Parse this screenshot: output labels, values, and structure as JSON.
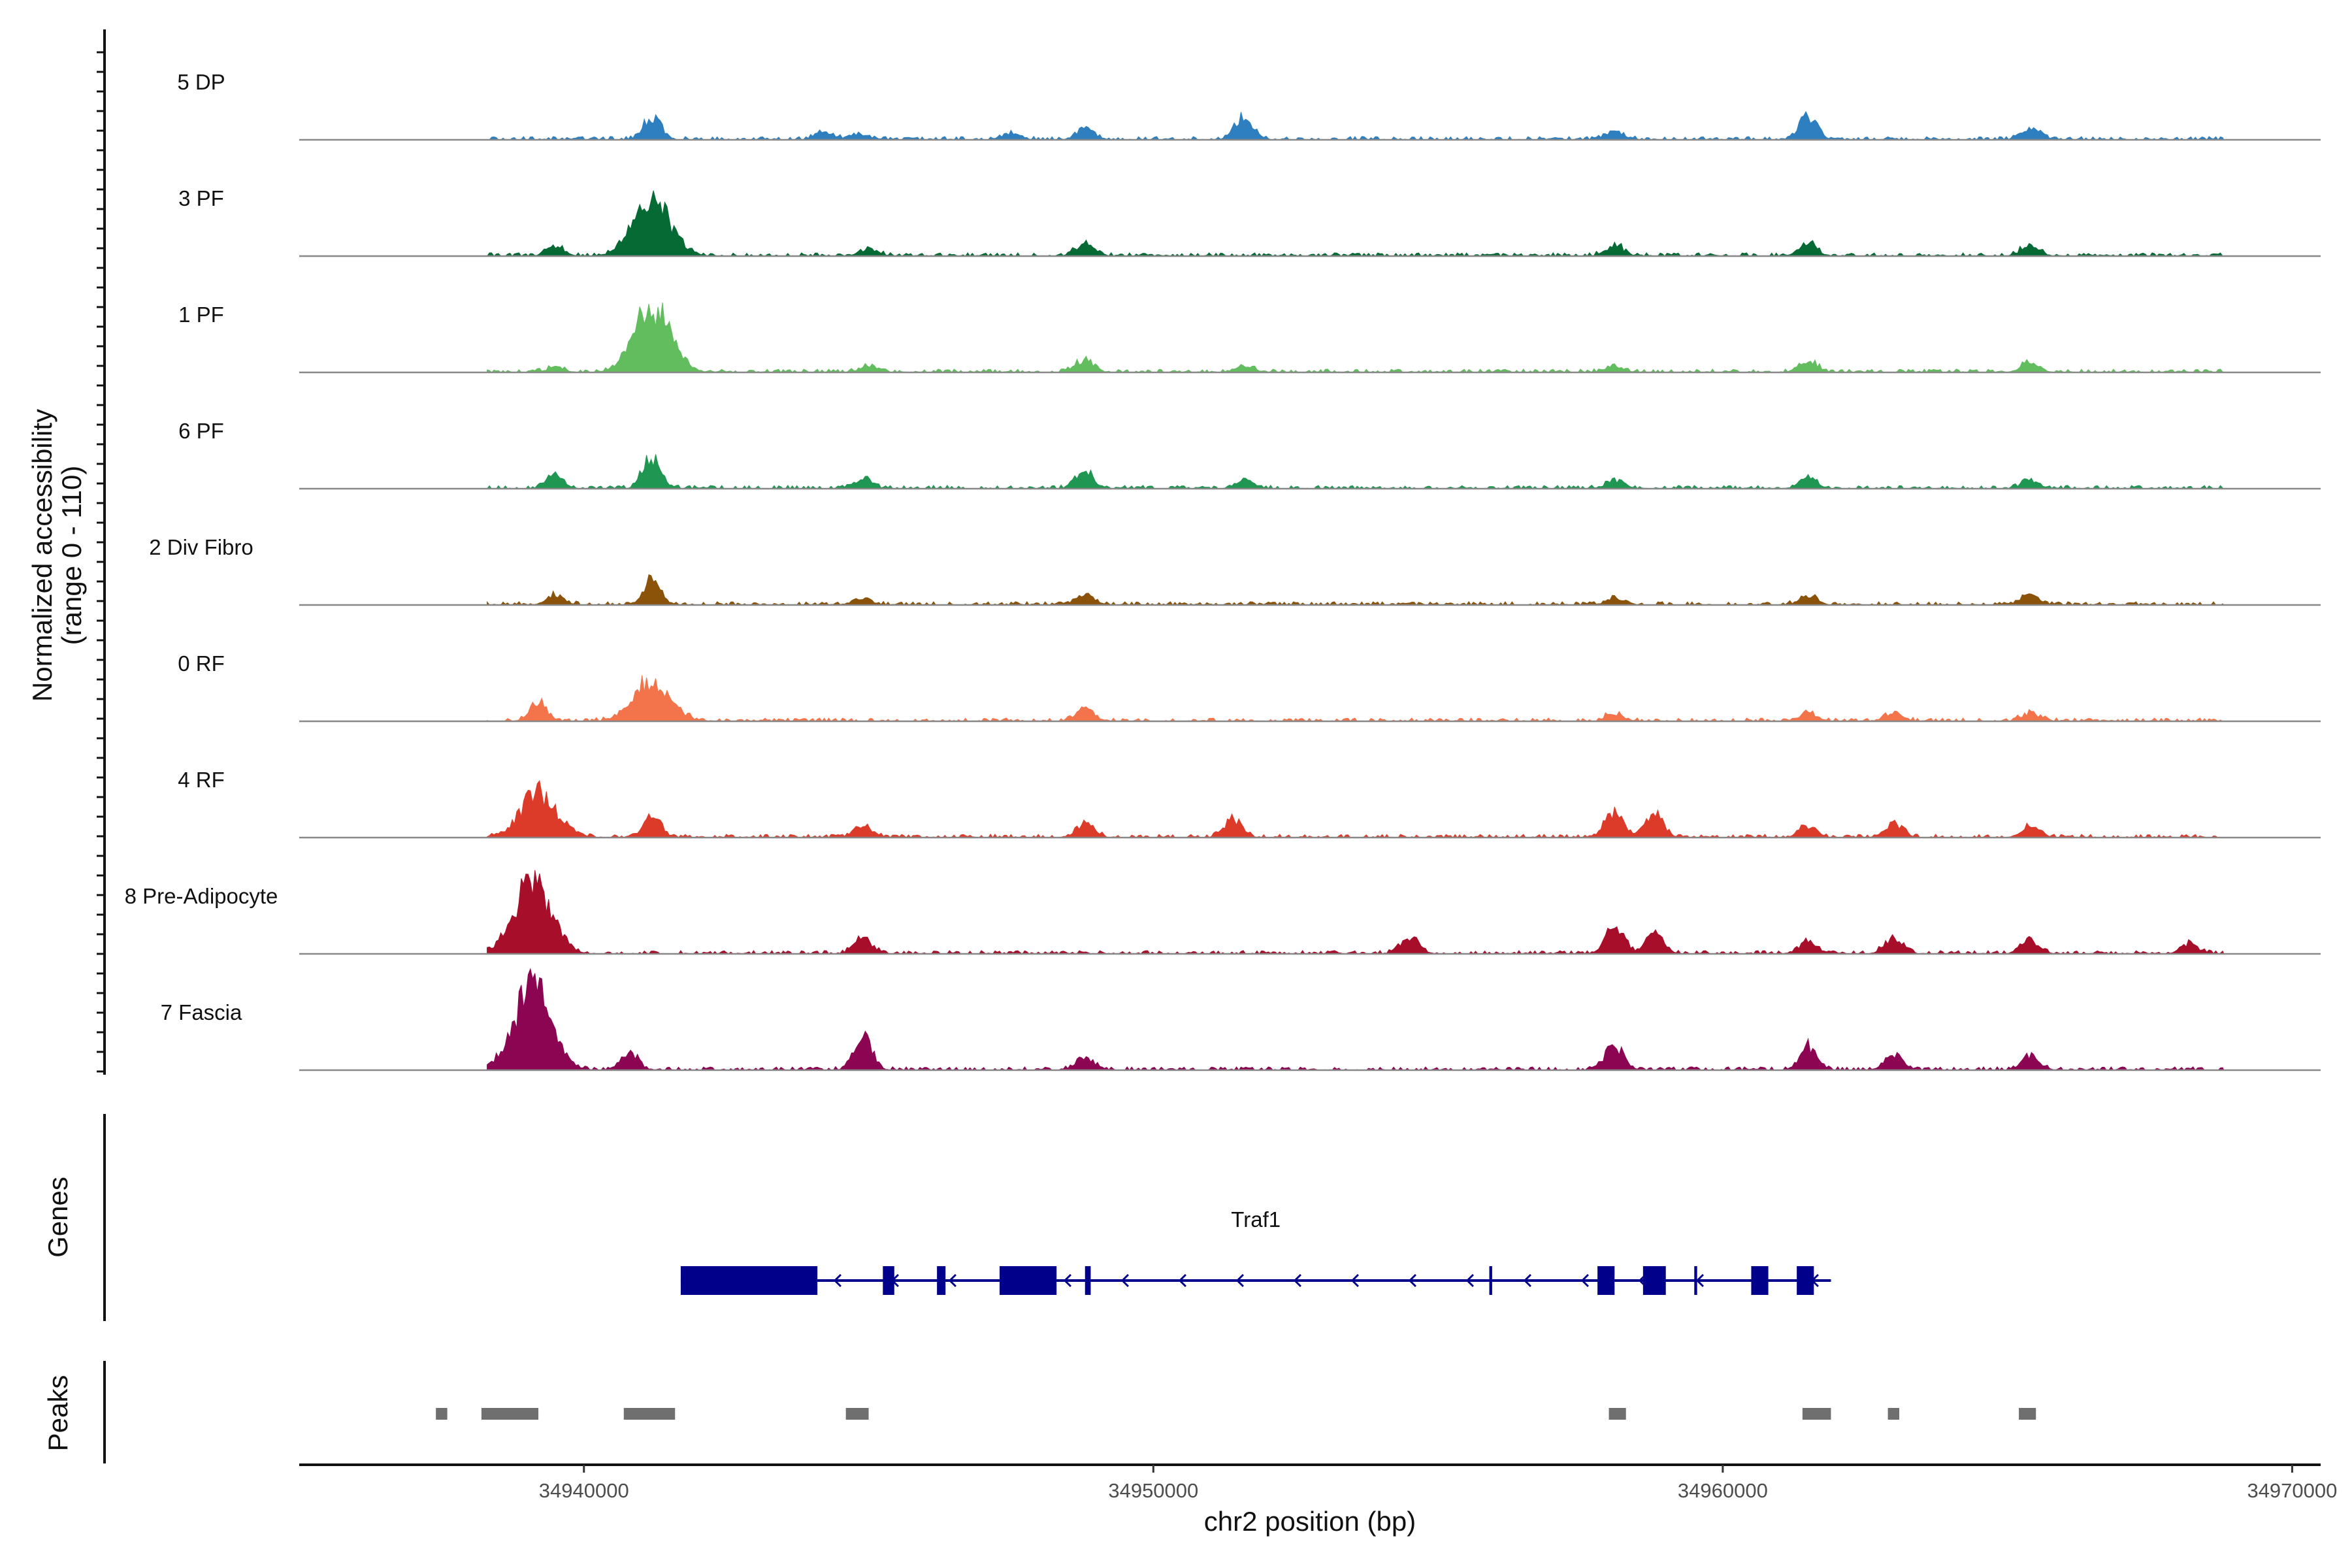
{
  "chart_data": {
    "type": "area",
    "title": "",
    "xlabel": "chr2 position (bp)",
    "ylabel_line1": "Normalized accessibility",
    "ylabel_line2": "(range 0 - 110)",
    "y_range": [
      0,
      110
    ],
    "xlim": [
      34935000,
      34970500
    ],
    "x_ticks": [
      34940000,
      34950000,
      34960000,
      34970000
    ],
    "x_tick_labels": [
      "34940000",
      "34950000",
      "34960000",
      "34970000"
    ],
    "track_extent_bp": [
      34938300,
      34968800
    ],
    "tracks": [
      {
        "name": "5 DP",
        "color": "#2e7fbf",
        "peaks": [
          [
            34941200,
            18
          ],
          [
            34944200,
            6
          ],
          [
            34944800,
            5
          ],
          [
            34947500,
            5
          ],
          [
            34948800,
            9
          ],
          [
            34951600,
            20
          ],
          [
            34958100,
            7
          ],
          [
            34961500,
            20
          ],
          [
            34965400,
            10
          ]
        ]
      },
      {
        "name": "3 PF",
        "color": "#066a35",
        "peaks": [
          [
            34939500,
            7
          ],
          [
            34941200,
            47
          ],
          [
            34945000,
            6
          ],
          [
            34948800,
            10
          ],
          [
            34958100,
            9
          ],
          [
            34961500,
            10
          ],
          [
            34965400,
            9
          ]
        ]
      },
      {
        "name": "1 PF",
        "color": "#62bd5e",
        "peaks": [
          [
            34939500,
            4
          ],
          [
            34941200,
            54
          ],
          [
            34945000,
            5
          ],
          [
            34948800,
            11
          ],
          [
            34951600,
            5
          ],
          [
            34958100,
            4
          ],
          [
            34961500,
            9
          ],
          [
            34965400,
            8
          ]
        ]
      },
      {
        "name": "6 PF",
        "color": "#1f9651",
        "peaks": [
          [
            34939500,
            10
          ],
          [
            34941200,
            27
          ],
          [
            34944900,
            8
          ],
          [
            34948800,
            14
          ],
          [
            34951600,
            7
          ],
          [
            34958100,
            7
          ],
          [
            34961500,
            9
          ],
          [
            34965400,
            7
          ]
        ]
      },
      {
        "name": "2 Div Fibro",
        "color": "#8b5209",
        "peaks": [
          [
            34939500,
            8
          ],
          [
            34941200,
            20
          ],
          [
            34944900,
            5
          ],
          [
            34948800,
            9
          ],
          [
            34958100,
            5
          ],
          [
            34961500,
            7
          ],
          [
            34965400,
            9
          ]
        ]
      },
      {
        "name": "0 RF",
        "color": "#f3744a",
        "peaks": [
          [
            34939200,
            16
          ],
          [
            34941200,
            33
          ],
          [
            34948800,
            10
          ],
          [
            34958100,
            6
          ],
          [
            34961500,
            7
          ],
          [
            34963000,
            6
          ],
          [
            34965400,
            7
          ]
        ]
      },
      {
        "name": "4 RF",
        "color": "#dc3b2a",
        "peaks": [
          [
            34939200,
            38
          ],
          [
            34941200,
            17
          ],
          [
            34944900,
            10
          ],
          [
            34948800,
            12
          ],
          [
            34951400,
            15
          ],
          [
            34958100,
            21
          ],
          [
            34958800,
            21
          ],
          [
            34961500,
            10
          ],
          [
            34963000,
            11
          ],
          [
            34965400,
            10
          ]
        ]
      },
      {
        "name": "8 Pre-Adipocyte",
        "color": "#a70e2a",
        "peaks": [
          [
            34939100,
            62
          ],
          [
            34944900,
            14
          ],
          [
            34954500,
            14
          ],
          [
            34958100,
            22
          ],
          [
            34958800,
            16
          ],
          [
            34961500,
            10
          ],
          [
            34963000,
            13
          ],
          [
            34965400,
            12
          ],
          [
            34968200,
            8
          ]
        ]
      },
      {
        "name": "7 Fascia",
        "color": "#8c0552",
        "peaks": [
          [
            34939100,
            70
          ],
          [
            34940800,
            14
          ],
          [
            34944900,
            27
          ],
          [
            34948800,
            11
          ],
          [
            34958100,
            21
          ],
          [
            34961500,
            20
          ],
          [
            34963000,
            12
          ],
          [
            34965400,
            13
          ]
        ]
      }
    ],
    "genes": [
      {
        "name": "Traf1",
        "strand": "-",
        "start": 34941700,
        "end": 34961900,
        "exons": [
          [
            34941700,
            34944100
          ],
          [
            34945250,
            34945450
          ],
          [
            34946200,
            34946350
          ],
          [
            34947300,
            34948300
          ],
          [
            34948800,
            34948900
          ],
          [
            34955900,
            34955950
          ],
          [
            34957800,
            34958100
          ],
          [
            34958600,
            34959000
          ],
          [
            34959500,
            34959550
          ],
          [
            34960500,
            34960800
          ],
          [
            34961300,
            34961600
          ]
        ]
      }
    ],
    "peak_regions": [
      [
        34937400,
        34937600
      ],
      [
        34938200,
        34939200
      ],
      [
        34940700,
        34941600
      ],
      [
        34944600,
        34945000
      ],
      [
        34958000,
        34958300
      ],
      [
        34961400,
        34961900
      ],
      [
        34962900,
        34963100
      ],
      [
        34965200,
        34965500
      ]
    ]
  },
  "panels": {
    "genes_label": "Genes",
    "peaks_label": "Peaks"
  },
  "colors": {
    "gene": "#00008b",
    "peak_region": "#6f6f6f",
    "baseline": "#888888",
    "axis": "#111111"
  }
}
